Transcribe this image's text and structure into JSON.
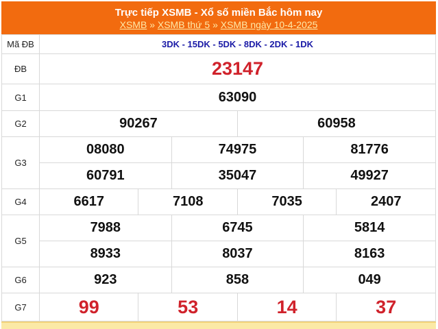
{
  "header": {
    "title": "Trực tiếp XSMB - Xổ số miền Bắc hôm nay",
    "breadcrumb": [
      {
        "label": "XSMB"
      },
      {
        "label": "XSMB thứ 5"
      },
      {
        "label": "XSMB ngày 10-4-2025"
      }
    ],
    "separator": "»"
  },
  "rows": {
    "ma_db": {
      "label": "Mã ĐB",
      "value": "3DK - 15DK - 5DK - 8DK - 2DK - 1DK"
    },
    "db": {
      "label": "ĐB",
      "values": [
        "23147"
      ]
    },
    "g1": {
      "label": "G1",
      "values": [
        "63090"
      ]
    },
    "g2": {
      "label": "G2",
      "values": [
        "90267",
        "60958"
      ]
    },
    "g3": {
      "label": "G3",
      "values": [
        "08080",
        "74975",
        "81776",
        "60791",
        "35047",
        "49927"
      ]
    },
    "g4": {
      "label": "G4",
      "values": [
        "6617",
        "7108",
        "7035",
        "2407"
      ]
    },
    "g5": {
      "label": "G5",
      "values": [
        "7988",
        "6745",
        "5814",
        "8933",
        "8037",
        "8163"
      ]
    },
    "g6": {
      "label": "G6",
      "values": [
        "923",
        "858",
        "049"
      ]
    },
    "g7": {
      "label": "G7",
      "values": [
        "99",
        "53",
        "14",
        "37"
      ]
    }
  },
  "colors": {
    "header": "#f26b0f",
    "accent_red": "#d0222b",
    "code_blue": "#1a1aa6"
  }
}
